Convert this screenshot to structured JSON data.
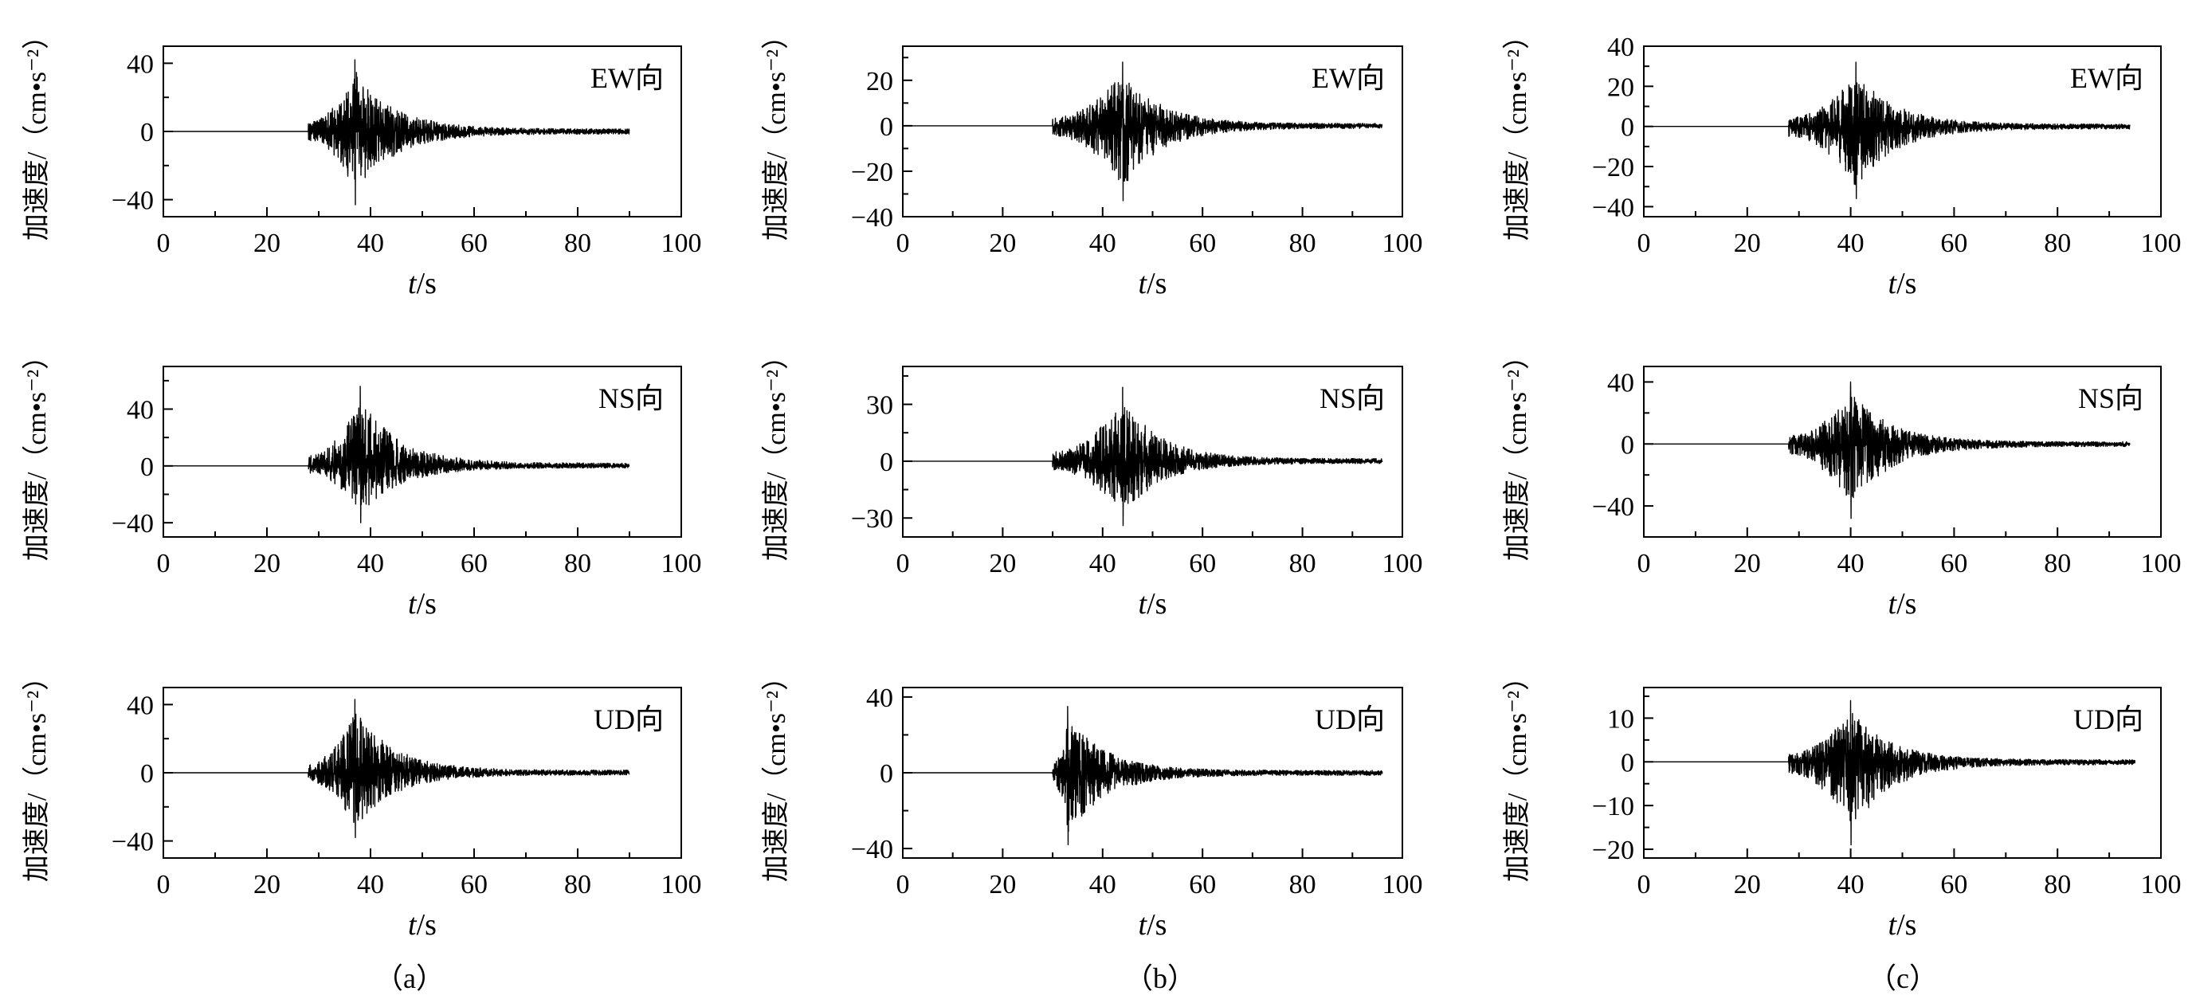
{
  "figure": {
    "captions": [
      "（a）",
      "（b）",
      "（c）"
    ]
  },
  "chart_data": [
    {
      "type": "line",
      "column": "a",
      "direction": "EW向",
      "ylabel": "加速度/（cm•s⁻²）",
      "xlabel": "t/s",
      "xlim": [
        0,
        100
      ],
      "ylim": [
        -50,
        50
      ],
      "xticks": [
        0,
        20,
        40,
        60,
        80,
        100
      ],
      "yticks": [
        -40,
        0,
        40
      ],
      "yminor": 20,
      "grid": false,
      "series": [
        {
          "t_start": 0,
          "t_end": 90,
          "onset": 28,
          "peak_time": 37,
          "peak_pos": 42,
          "peak_neg": -43,
          "baseline": 0
        }
      ]
    },
    {
      "type": "line",
      "column": "a",
      "direction": "NS向",
      "ylabel": "加速度/（cm•s⁻²）",
      "xlabel": "t/s",
      "xlim": [
        0,
        100
      ],
      "ylim": [
        -50,
        70
      ],
      "xticks": [
        0,
        20,
        40,
        60,
        80,
        100
      ],
      "yticks": [
        -40,
        0,
        40
      ],
      "yminor": 20,
      "grid": false,
      "series": [
        {
          "t_start": 0,
          "t_end": 90,
          "onset": 28,
          "peak_time": 38,
          "peak_pos": 56,
          "peak_neg": -40,
          "baseline": 0
        }
      ]
    },
    {
      "type": "line",
      "column": "a",
      "direction": "UD向",
      "ylabel": "加速度/（cm•s⁻²）",
      "xlabel": "t/s",
      "xlim": [
        0,
        100
      ],
      "ylim": [
        -50,
        50
      ],
      "xticks": [
        0,
        20,
        40,
        60,
        80,
        100
      ],
      "yticks": [
        -40,
        0,
        40
      ],
      "yminor": 20,
      "grid": false,
      "series": [
        {
          "t_start": 0,
          "t_end": 90,
          "onset": 28,
          "peak_time": 37,
          "peak_pos": 43,
          "peak_neg": -38,
          "baseline": 0
        }
      ]
    },
    {
      "type": "line",
      "column": "b",
      "direction": "EW向",
      "ylabel": "加速度/（cm•s⁻²）",
      "xlabel": "t/s",
      "xlim": [
        0,
        100
      ],
      "ylim": [
        -40,
        35
      ],
      "xticks": [
        0,
        20,
        40,
        60,
        80,
        100
      ],
      "yticks": [
        -40,
        -20,
        0,
        20
      ],
      "yminor": 10,
      "grid": false,
      "series": [
        {
          "t_start": 0,
          "t_end": 96,
          "onset": 30,
          "peak_time": 44,
          "peak_pos": 28,
          "peak_neg": -33,
          "baseline": 0
        }
      ]
    },
    {
      "type": "line",
      "column": "b",
      "direction": "NS向",
      "ylabel": "加速度/（cm•s⁻²）",
      "xlabel": "t/s",
      "xlim": [
        0,
        100
      ],
      "ylim": [
        -40,
        50
      ],
      "xticks": [
        0,
        20,
        40,
        60,
        80,
        100
      ],
      "yticks": [
        -30,
        0,
        30
      ],
      "yminor": 15,
      "grid": false,
      "series": [
        {
          "t_start": 0,
          "t_end": 96,
          "onset": 30,
          "peak_time": 44,
          "peak_pos": 39,
          "peak_neg": -34,
          "baseline": 0
        }
      ]
    },
    {
      "type": "line",
      "column": "b",
      "direction": "UD向",
      "ylabel": "加速度/（cm•s⁻²）",
      "xlabel": "t/s",
      "xlim": [
        0,
        100
      ],
      "ylim": [
        -45,
        45
      ],
      "xticks": [
        0,
        20,
        40,
        60,
        80,
        100
      ],
      "yticks": [
        -40,
        0,
        40
      ],
      "yminor": 20,
      "grid": false,
      "series": [
        {
          "t_start": 0,
          "t_end": 96,
          "onset": 30,
          "peak_time": 33,
          "peak_pos": 35,
          "peak_neg": -38,
          "baseline": 0
        }
      ]
    },
    {
      "type": "line",
      "column": "c",
      "direction": "EW向",
      "ylabel": "加速度/（cm•s⁻²）",
      "xlabel": "t/s",
      "xlim": [
        0,
        100
      ],
      "ylim": [
        -45,
        40
      ],
      "xticks": [
        0,
        20,
        40,
        60,
        80,
        100
      ],
      "yticks": [
        -40,
        -20,
        0,
        20,
        40
      ],
      "yminor": 10,
      "grid": false,
      "series": [
        {
          "t_start": 0,
          "t_end": 94,
          "onset": 28,
          "peak_time": 41,
          "peak_pos": 32,
          "peak_neg": -36,
          "baseline": 0
        }
      ]
    },
    {
      "type": "line",
      "column": "c",
      "direction": "NS向",
      "ylabel": "加速度/（cm•s⁻²）",
      "xlabel": "t/s",
      "xlim": [
        0,
        100
      ],
      "ylim": [
        -60,
        50
      ],
      "xticks": [
        0,
        20,
        40,
        60,
        80,
        100
      ],
      "yticks": [
        -40,
        0,
        40
      ],
      "yminor": 20,
      "grid": false,
      "series": [
        {
          "t_start": 0,
          "t_end": 94,
          "onset": 28,
          "peak_time": 40,
          "peak_pos": 40,
          "peak_neg": -48,
          "baseline": 0
        }
      ]
    },
    {
      "type": "line",
      "column": "c",
      "direction": "UD向",
      "ylabel": "加速度/（cm•s⁻²）",
      "xlabel": "t/s",
      "xlim": [
        0,
        100
      ],
      "ylim": [
        -22,
        17
      ],
      "xticks": [
        0,
        20,
        40,
        60,
        80,
        100
      ],
      "yticks": [
        -20,
        -10,
        0,
        10
      ],
      "yminor": 5,
      "grid": false,
      "series": [
        {
          "t_start": 0,
          "t_end": 95,
          "onset": 28,
          "peak_time": 40,
          "peak_pos": 14,
          "peak_neg": -19,
          "baseline": 0
        }
      ]
    }
  ]
}
